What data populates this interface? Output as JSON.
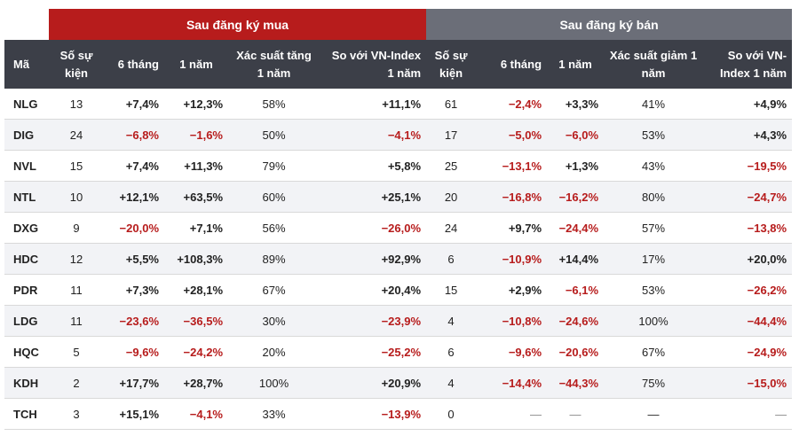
{
  "groups": {
    "buy": "Sau đăng ký mua",
    "sell": "Sau đăng ký bán"
  },
  "columns": {
    "code": "Mã",
    "events": "Số sự kiện",
    "m6": "6 tháng",
    "y1": "1 năm",
    "prob_up": "Xác suất tăng 1 năm",
    "vs_idx": "So với VN-Index 1 năm",
    "events2": "Số sự kiện",
    "m6_2": "6 tháng",
    "y1_2": "1 năm",
    "prob_down": "Xác suất giảm 1 năm",
    "vs_idx2": "So với VN-Index 1 năm"
  },
  "rows": [
    [
      "NLG",
      "13",
      "+7,4%",
      "+12,3%",
      "58%",
      "+11,1%",
      "61",
      "−2,4%",
      "+3,3%",
      "41%",
      "+4,9%"
    ],
    [
      "DIG",
      "24",
      "−6,8%",
      "−1,6%",
      "50%",
      "−4,1%",
      "17",
      "−5,0%",
      "−6,0%",
      "53%",
      "+4,3%"
    ],
    [
      "NVL",
      "15",
      "+7,4%",
      "+11,3%",
      "79%",
      "+5,8%",
      "25",
      "−13,1%",
      "+1,3%",
      "43%",
      "−19,5%"
    ],
    [
      "NTL",
      "10",
      "+12,1%",
      "+63,5%",
      "60%",
      "+25,1%",
      "20",
      "−16,8%",
      "−16,2%",
      "80%",
      "−24,7%"
    ],
    [
      "DXG",
      "9",
      "−20,0%",
      "+7,1%",
      "56%",
      "−26,0%",
      "24",
      "+9,7%",
      "−24,4%",
      "57%",
      "−13,8%"
    ],
    [
      "HDC",
      "12",
      "+5,5%",
      "+108,3%",
      "89%",
      "+92,9%",
      "6",
      "−10,9%",
      "+14,4%",
      "17%",
      "+20,0%"
    ],
    [
      "PDR",
      "11",
      "+7,3%",
      "+28,1%",
      "67%",
      "+20,4%",
      "15",
      "+2,9%",
      "−6,1%",
      "53%",
      "−26,2%"
    ],
    [
      "LDG",
      "11",
      "−23,6%",
      "−36,5%",
      "30%",
      "−23,9%",
      "4",
      "−10,8%",
      "−24,6%",
      "100%",
      "−44,4%"
    ],
    [
      "HQC",
      "5",
      "−9,6%",
      "−24,2%",
      "20%",
      "−25,2%",
      "6",
      "−9,6%",
      "−20,6%",
      "67%",
      "−24,9%"
    ],
    [
      "KDH",
      "2",
      "+17,7%",
      "+28,7%",
      "100%",
      "+20,9%",
      "4",
      "−14,4%",
      "−44,3%",
      "75%",
      "−15,0%"
    ],
    [
      "TCH",
      "3",
      "+15,1%",
      "−4,1%",
      "33%",
      "−13,9%",
      "0",
      "—",
      "—",
      "—",
      "—"
    ]
  ]
}
